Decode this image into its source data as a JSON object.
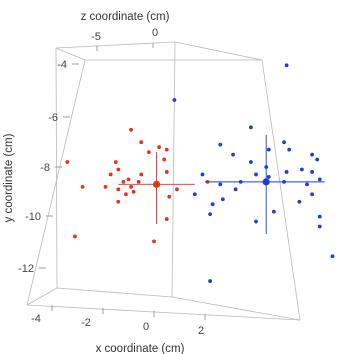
{
  "chart_data": {
    "type": "scatter3d",
    "xlabel": "x coordinate (cm)",
    "ylabel": "y coordinate (cm)",
    "zlabel": "z coordinate (cm)",
    "x_ticks": [
      "-4",
      "-2",
      "0",
      "2"
    ],
    "y_ticks": [
      "-4",
      "-6",
      "-8",
      "-10",
      "-12"
    ],
    "z_ticks": [
      "-5",
      "0"
    ],
    "x_tick_values": [
      -4,
      -2,
      0,
      2
    ],
    "y_tick_values": [
      -4,
      -6,
      -8,
      -10,
      -12
    ],
    "z_tick_values": [
      -5,
      0
    ],
    "xlim": [
      -4.5,
      3.5
    ],
    "ylim": [
      -13.5,
      -3.5
    ],
    "zlim": [
      -8,
      3
    ],
    "series": [
      {
        "color": "#e8311a",
        "points": [
          [
            -0.9,
            -6.5,
            0
          ],
          [
            -0.5,
            -7.0,
            0
          ],
          [
            0.2,
            -7.2,
            0
          ],
          [
            0.5,
            -7.3,
            0
          ],
          [
            -3.4,
            -7.8,
            0
          ],
          [
            -1.5,
            -7.8,
            0
          ],
          [
            -0.2,
            -7.4,
            0
          ],
          [
            0.4,
            -7.7,
            0
          ],
          [
            -1.4,
            -8.1,
            0
          ],
          [
            -0.5,
            -8.3,
            0
          ],
          [
            0.5,
            -8.2,
            0
          ],
          [
            -1.7,
            -8.3,
            0
          ],
          [
            -1.2,
            -8.6,
            0
          ],
          [
            -0.9,
            -8.8,
            0
          ],
          [
            -1.4,
            -8.9,
            0
          ],
          [
            -0.6,
            -8.6,
            0
          ],
          [
            -1.0,
            -8.5,
            0
          ],
          [
            -1.9,
            -8.8,
            0
          ],
          [
            -2.8,
            -8.8,
            0
          ],
          [
            -1.1,
            -9.1,
            0
          ],
          [
            -0.8,
            -9.0,
            0
          ],
          [
            -1.4,
            -9.4,
            0
          ],
          [
            0.6,
            -9.2,
            0
          ],
          [
            0.9,
            -8.9,
            0
          ],
          [
            2.1,
            -8.6,
            0
          ],
          [
            0.5,
            -10.1,
            0
          ],
          [
            -3.1,
            -10.8,
            0
          ],
          [
            0.0,
            -11.0,
            0
          ]
        ],
        "mean": [
          0.1,
          -8.7,
          0
        ],
        "error_x": [
          -1.5,
          1.5
        ],
        "error_y": [
          -1.6,
          1.3
        ]
      },
      {
        "color": "#1c3ed8",
        "points": [
          [
            0.8,
            -5.3,
            0
          ],
          [
            5.2,
            -3.9,
            0
          ],
          [
            3.8,
            -6.4,
            0
          ],
          [
            5.1,
            -7.0,
            0
          ],
          [
            2.6,
            -7.1,
            0
          ],
          [
            4.5,
            -7.3,
            0
          ],
          [
            5.3,
            -7.3,
            0
          ],
          [
            6.2,
            -7.5,
            0
          ],
          [
            3.1,
            -7.5,
            0
          ],
          [
            6.4,
            -7.7,
            0
          ],
          [
            3.8,
            -7.8,
            0
          ],
          [
            4.4,
            -8.0,
            0
          ],
          [
            5.2,
            -8.2,
            0
          ],
          [
            6.2,
            -8.2,
            0
          ],
          [
            4.0,
            -8.3,
            0
          ],
          [
            5.8,
            -8.1,
            0
          ],
          [
            1.9,
            -8.3,
            0
          ],
          [
            3.4,
            -8.6,
            0
          ],
          [
            4.5,
            -8.4,
            0
          ],
          [
            6.5,
            -8.5,
            0
          ],
          [
            5.1,
            -8.6,
            0
          ],
          [
            6.0,
            -8.7,
            0
          ],
          [
            2.6,
            -8.7,
            0
          ],
          [
            1.6,
            -9.1,
            0
          ],
          [
            3.2,
            -8.9,
            0
          ],
          [
            2.7,
            -9.3,
            0
          ],
          [
            2.3,
            -9.5,
            0
          ],
          [
            6.2,
            -9.1,
            0
          ],
          [
            5.7,
            -9.4,
            0
          ],
          [
            2.2,
            -9.9,
            0
          ],
          [
            4.7,
            -9.8,
            0
          ],
          [
            6.5,
            -10.0,
            0
          ],
          [
            4.0,
            -10.2,
            0
          ],
          [
            6.5,
            -10.4,
            0
          ],
          [
            7.0,
            -11.6,
            0
          ],
          [
            2.2,
            -12.6,
            0
          ]
        ],
        "mean": [
          4.4,
          -8.6,
          0
        ],
        "error_x": [
          -2.4,
          2.3
        ],
        "error_y": [
          -2.1,
          1.9
        ]
      }
    ]
  },
  "colors": {
    "red": "#e8311a",
    "blue": "#1c3ed8",
    "box": "#b9b9b9",
    "text": "#444444"
  }
}
